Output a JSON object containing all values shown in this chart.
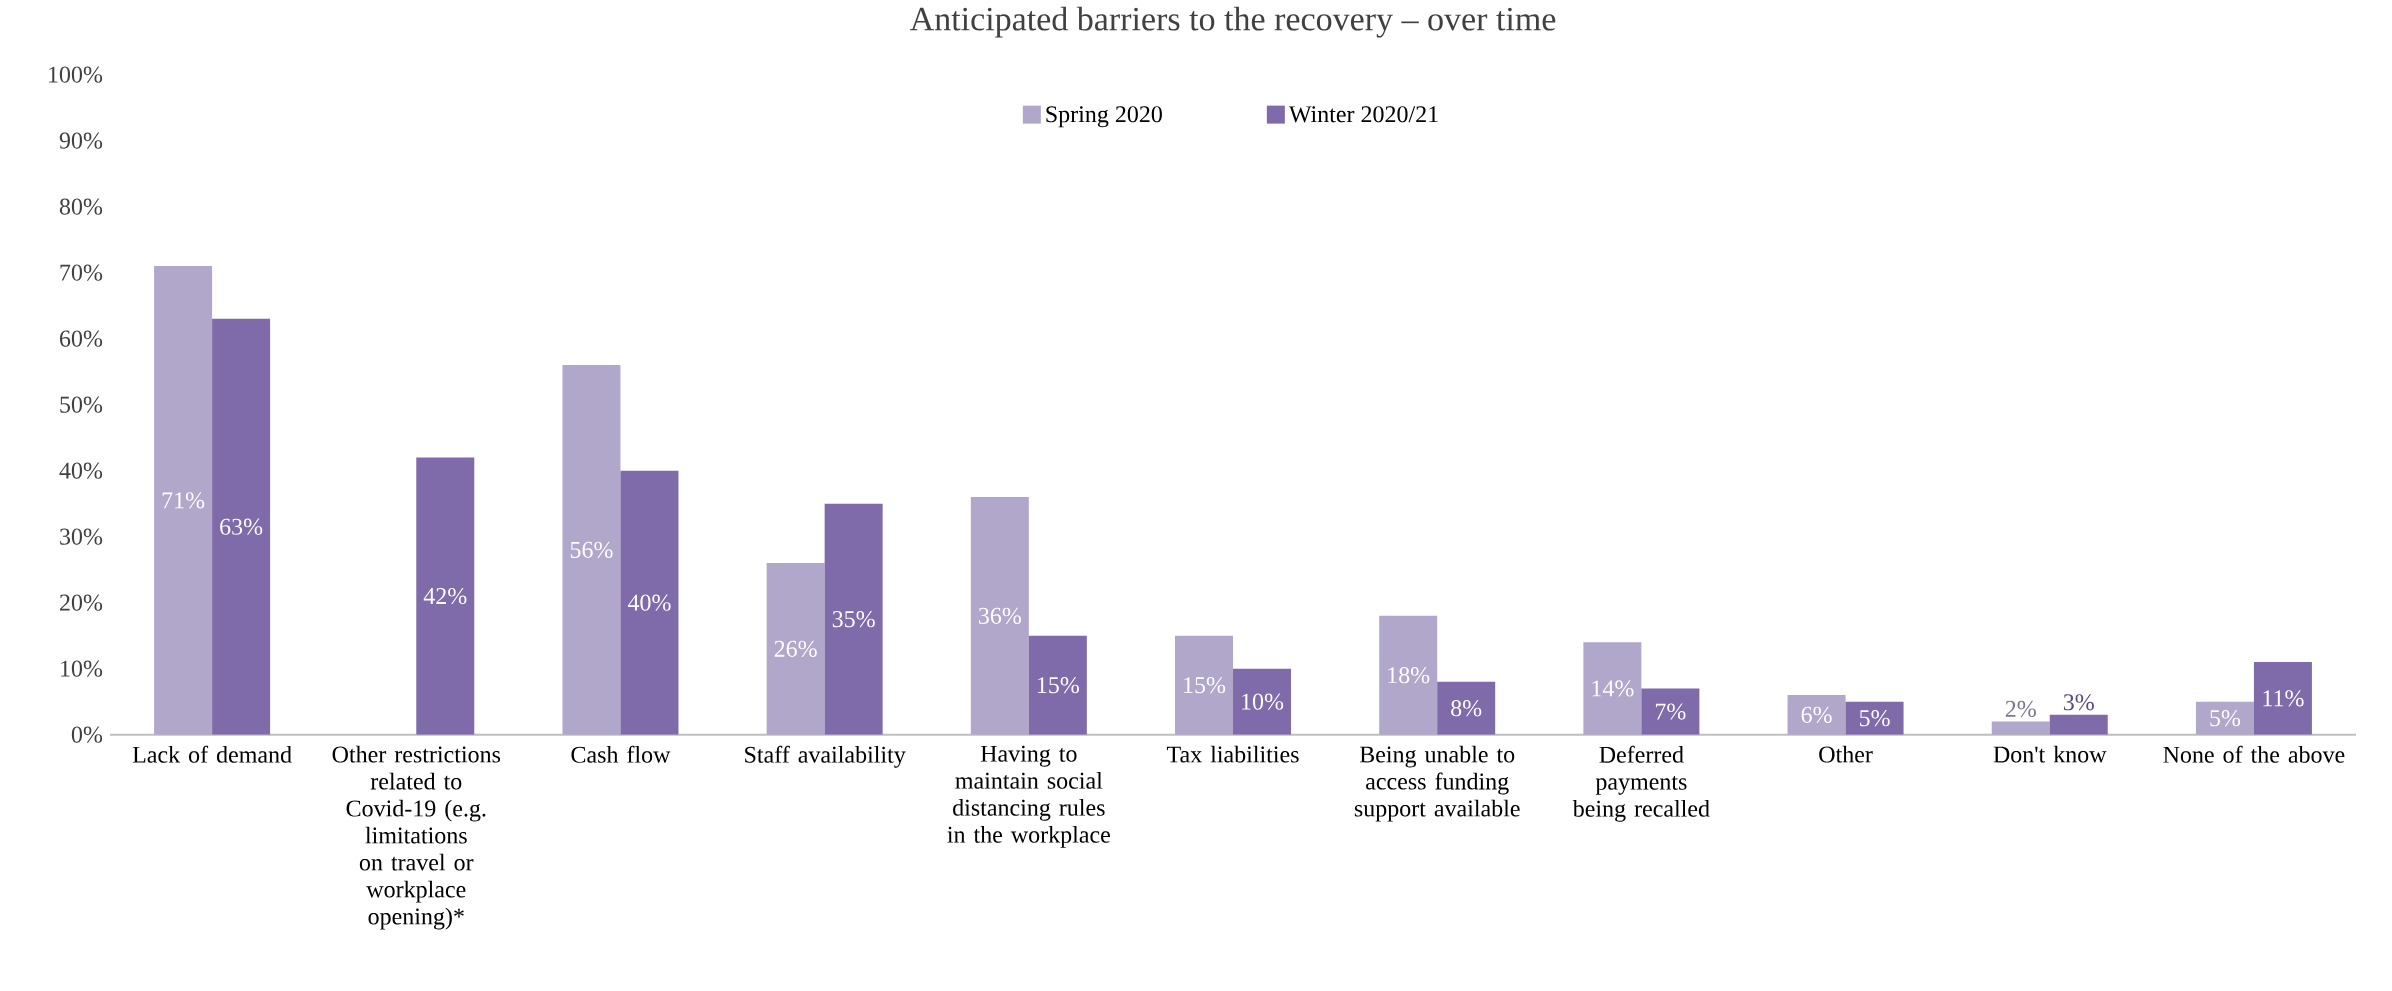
{
  "chart_data": {
    "type": "bar",
    "title": "Anticipated barriers to the recovery – over time",
    "categories": [
      "Lack of demand",
      "Other restrictions related to Covid-19 (e.g. limitations on travel or workplace opening)*",
      "Cash flow",
      "Staff availability",
      "Having to maintain social distancing rules in the workplace",
      "Tax liabilities",
      "Being unable to access funding support available",
      "Deferred payments being recalled",
      "Other",
      "Don't know",
      "None of the above"
    ],
    "series": [
      {
        "name": "Spring 2020",
        "color": "#b1a7cb",
        "values": [
          71,
          null,
          56,
          26,
          36,
          15,
          18,
          14,
          6,
          2,
          5
        ],
        "value_labels": [
          "71%",
          null,
          "56%",
          "26%",
          "36%",
          "15%",
          "18%",
          "14%",
          "6%",
          "2%",
          "5%"
        ]
      },
      {
        "name": "Winter 2020/21",
        "color": "#7f6aaa",
        "values": [
          63,
          42,
          40,
          35,
          15,
          10,
          8,
          7,
          5,
          3,
          11
        ],
        "value_labels": [
          "63%",
          "42%",
          "40%",
          "35%",
          "15%",
          "10%",
          "8%",
          "7%",
          "5%",
          "3%",
          "11%"
        ]
      }
    ],
    "ylim": [
      0,
      100
    ],
    "yticks": [
      {
        "value": 0,
        "label": "0%"
      },
      {
        "value": 10,
        "label": "10%"
      },
      {
        "value": 20,
        "label": "20%"
      },
      {
        "value": 30,
        "label": "30%"
      },
      {
        "value": 40,
        "label": "40%"
      },
      {
        "value": 50,
        "label": "50%"
      },
      {
        "value": 60,
        "label": "60%"
      },
      {
        "value": 70,
        "label": "70%"
      },
      {
        "value": 80,
        "label": "80%"
      },
      {
        "value": 90,
        "label": "90%"
      },
      {
        "value": 100,
        "label": "100%"
      }
    ],
    "grid": false,
    "legend": "top"
  }
}
